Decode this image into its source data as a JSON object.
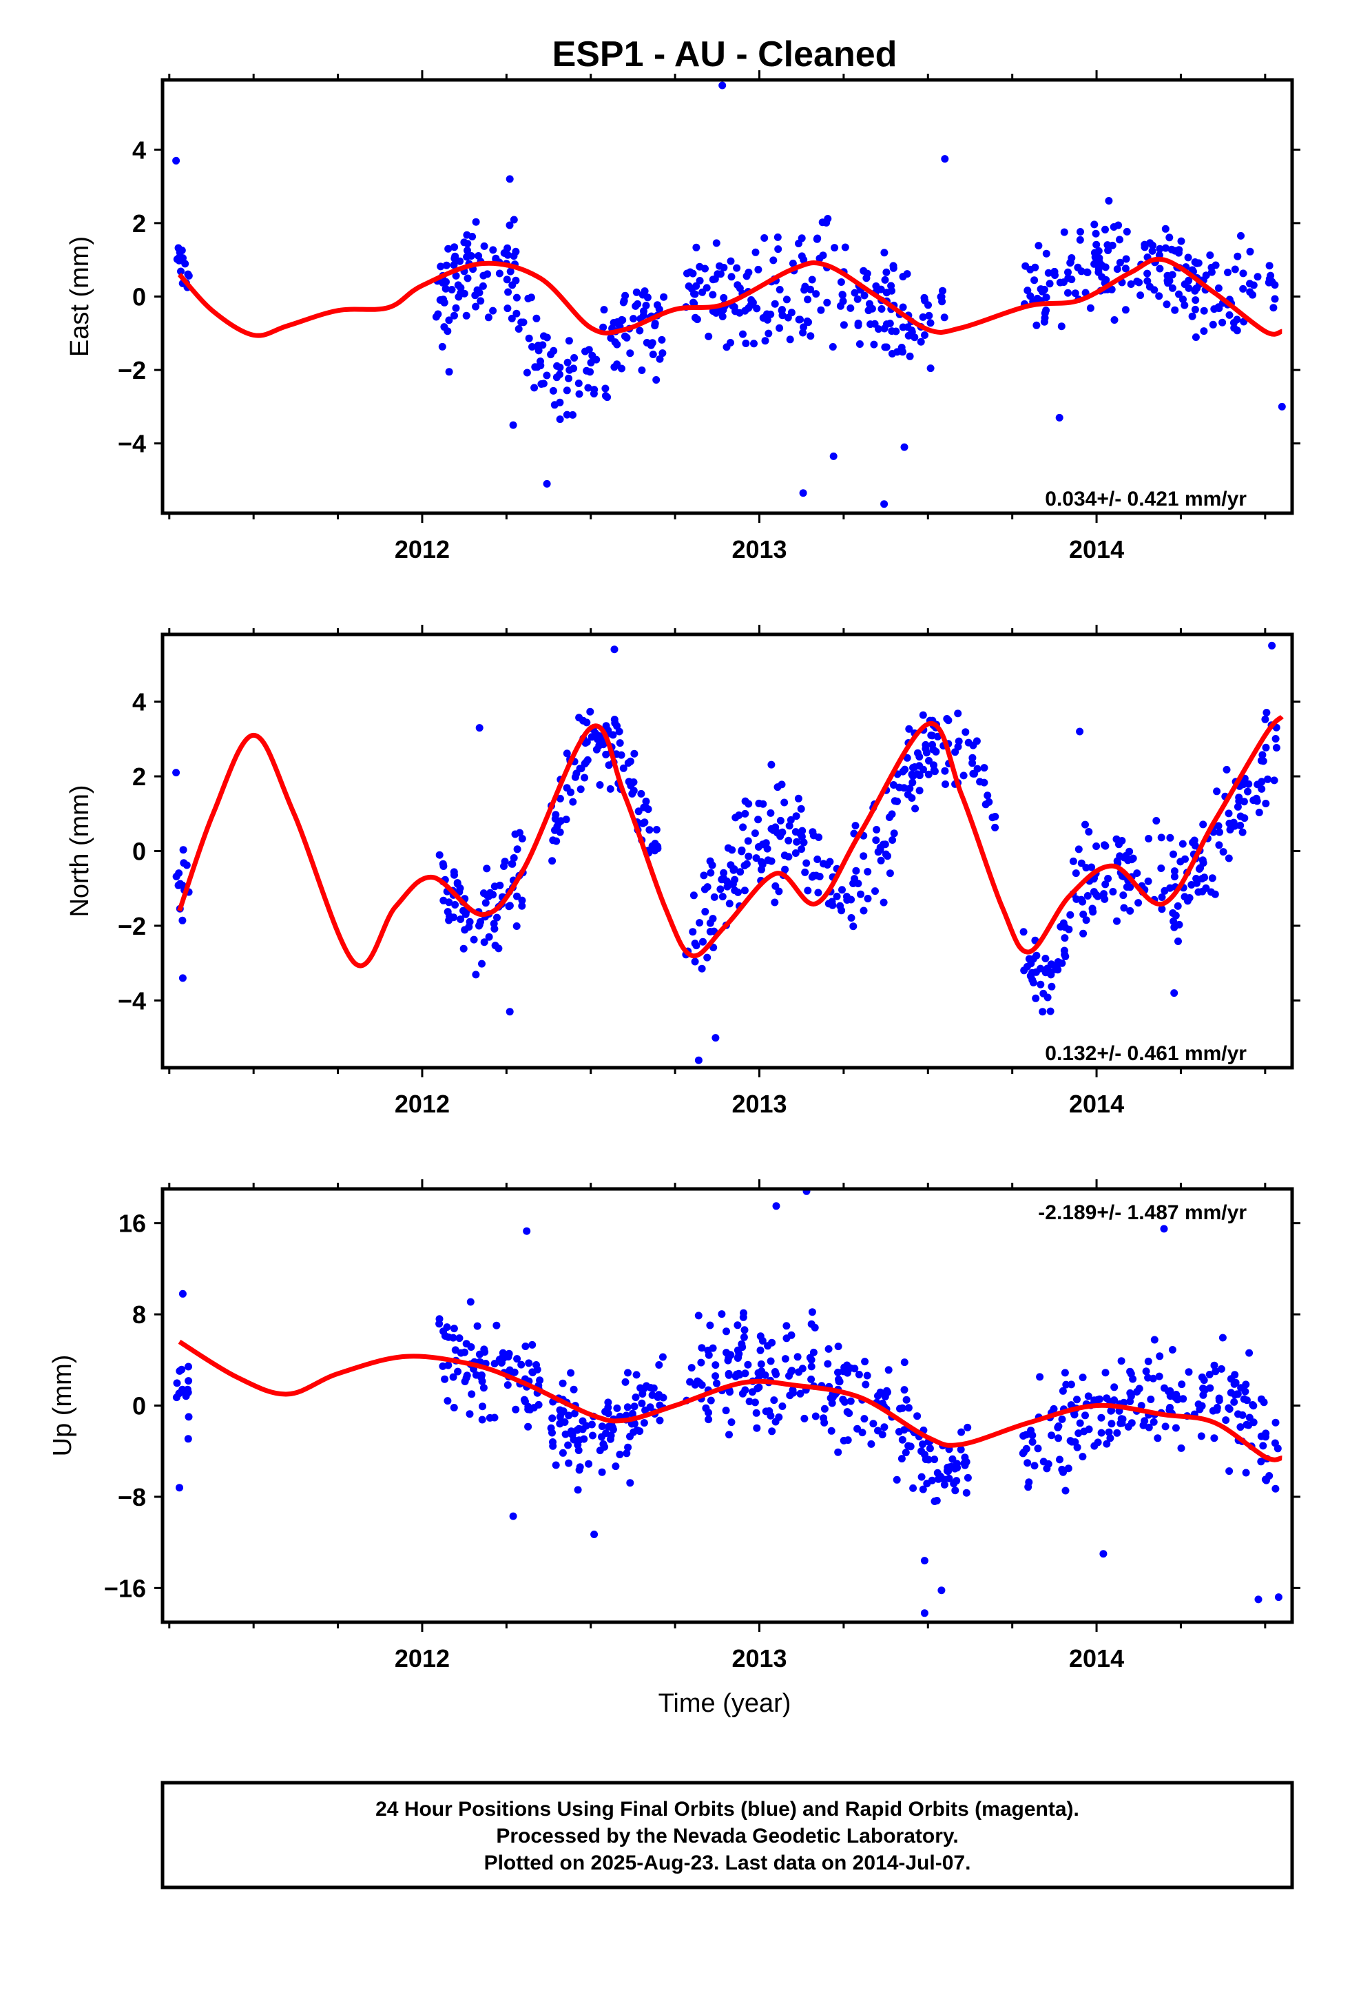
{
  "title": "ESP1  - AU - Cleaned",
  "xlabel": "Time (year)",
  "footer": {
    "line1": "24 Hour Positions Using Final Orbits (blue) and Rapid Orbits (magenta).",
    "line2": "Processed by the Nevada Geodetic Laboratory.",
    "line3": "Plotted on 2025-Aug-23. Last data on 2014-Jul-07."
  },
  "colors": {
    "points": "#0000ff",
    "fit": "#ff0000",
    "frame": "#000000"
  },
  "chart_data": [
    {
      "type": "scatter",
      "name": "east",
      "ylabel": "East (mm)",
      "rate_text": "0.034+/- 0.421 mm/yr",
      "xlim": [
        2011.23,
        2014.58
      ],
      "ylim": [
        -5.9,
        5.9
      ],
      "yticks": [
        -4,
        -2,
        0,
        2,
        4
      ],
      "xticks": [
        2012,
        2013,
        2014
      ],
      "fit": [
        [
          2011.28,
          0.6
        ],
        [
          2011.38,
          -0.4
        ],
        [
          2011.5,
          -1.05
        ],
        [
          2011.6,
          -0.8
        ],
        [
          2011.75,
          -0.38
        ],
        [
          2011.9,
          -0.3
        ],
        [
          2012.0,
          0.3
        ],
        [
          2012.18,
          0.9
        ],
        [
          2012.35,
          0.5
        ],
        [
          2012.5,
          -0.85
        ],
        [
          2012.6,
          -0.9
        ],
        [
          2012.75,
          -0.35
        ],
        [
          2012.9,
          -0.2
        ],
        [
          2013.1,
          0.75
        ],
        [
          2013.2,
          0.85
        ],
        [
          2013.35,
          0.0
        ],
        [
          2013.5,
          -0.9
        ],
        [
          2013.6,
          -0.85
        ],
        [
          2013.8,
          -0.25
        ],
        [
          2013.95,
          -0.1
        ],
        [
          2014.1,
          0.65
        ],
        [
          2014.2,
          1.0
        ],
        [
          2014.35,
          0.1
        ],
        [
          2014.5,
          -0.95
        ],
        [
          2014.55,
          -0.95
        ]
      ],
      "clusters": [
        {
          "from": 2011.27,
          "to": 2011.31,
          "center": [
            [
              2011.27,
              1.3
            ],
            [
              2011.31,
              0.9
            ]
          ],
          "spread": 1.3,
          "count": 14
        },
        {
          "from": 2012.04,
          "to": 2012.28,
          "center": [
            [
              2012.04,
              0.0
            ],
            [
              2012.18,
              1.1
            ],
            [
              2012.28,
              0.8
            ]
          ],
          "spread": 1.2,
          "count": 80
        },
        {
          "from": 2012.28,
          "to": 2012.72,
          "center": [
            [
              2012.28,
              -0.5
            ],
            [
              2012.42,
              -2.2
            ],
            [
              2012.52,
              -2.0
            ],
            [
              2012.62,
              -0.6
            ],
            [
              2012.72,
              -0.9
            ]
          ],
          "spread": 1.2,
          "count": 110
        },
        {
          "from": 2012.78,
          "to": 2013.55,
          "center": [
            [
              2012.8,
              0.2
            ],
            [
              2013.0,
              0.0
            ],
            [
              2013.2,
              0.5
            ],
            [
              2013.35,
              -0.3
            ],
            [
              2013.55,
              -0.5
            ]
          ],
          "spread": 1.4,
          "count": 200
        },
        {
          "from": 2013.78,
          "to": 2014.54,
          "center": [
            [
              2013.8,
              0.1
            ],
            [
              2014.0,
              0.8
            ],
            [
              2014.2,
              0.9
            ],
            [
              2014.35,
              0.0
            ],
            [
              2014.54,
              0.3
            ]
          ],
          "spread": 1.1,
          "count": 190
        }
      ],
      "outliers": [
        [
          2012.89,
          5.75
        ],
        [
          2013.55,
          3.75
        ],
        [
          2013.37,
          -5.65
        ],
        [
          2013.13,
          -5.35
        ],
        [
          2012.37,
          -5.1
        ],
        [
          2012.27,
          -3.5
        ],
        [
          2012.08,
          -2.05
        ],
        [
          2013.22,
          -4.35
        ],
        [
          2013.43,
          -4.1
        ],
        [
          2012.26,
          3.2
        ],
        [
          2011.27,
          3.7
        ],
        [
          2014.55,
          -3.0
        ],
        [
          2013.89,
          -3.3
        ]
      ]
    },
    {
      "type": "scatter",
      "name": "north",
      "ylabel": "North (mm)",
      "rate_text": "0.132+/- 0.461 mm/yr",
      "xlim": [
        2011.23,
        2014.58
      ],
      "ylim": [
        -5.8,
        5.8
      ],
      "yticks": [
        -4,
        -2,
        0,
        2,
        4
      ],
      "xticks": [
        2012,
        2013,
        2014
      ],
      "fit": [
        [
          2011.28,
          -1.6
        ],
        [
          2011.38,
          1.0
        ],
        [
          2011.5,
          3.1
        ],
        [
          2011.62,
          1.0
        ],
        [
          2011.8,
          -3.0
        ],
        [
          2011.92,
          -1.5
        ],
        [
          2012.03,
          -0.7
        ],
        [
          2012.18,
          -1.7
        ],
        [
          2012.3,
          -0.5
        ],
        [
          2012.5,
          3.3
        ],
        [
          2012.6,
          1.5
        ],
        [
          2012.72,
          -1.5
        ],
        [
          2012.8,
          -2.8
        ],
        [
          2012.9,
          -2.0
        ],
        [
          2013.05,
          -0.6
        ],
        [
          2013.17,
          -1.4
        ],
        [
          2013.3,
          0.5
        ],
        [
          2013.5,
          3.4
        ],
        [
          2013.6,
          1.5
        ],
        [
          2013.72,
          -1.5
        ],
        [
          2013.8,
          -2.7
        ],
        [
          2013.92,
          -1.2
        ],
        [
          2014.05,
          -0.4
        ],
        [
          2014.2,
          -1.4
        ],
        [
          2014.35,
          0.8
        ],
        [
          2014.5,
          3.1
        ],
        [
          2014.55,
          3.6
        ]
      ],
      "clusters": [
        {
          "from": 2011.27,
          "to": 2011.31,
          "center": [
            [
              2011.27,
              -0.5
            ],
            [
              2011.31,
              -1.5
            ]
          ],
          "spread": 1.1,
          "count": 12
        },
        {
          "from": 2012.05,
          "to": 2012.3,
          "center": [
            [
              2012.05,
              -1.0
            ],
            [
              2012.18,
              -1.8
            ],
            [
              2012.3,
              -0.6
            ]
          ],
          "spread": 1.1,
          "count": 80
        },
        {
          "from": 2012.38,
          "to": 2012.7,
          "center": [
            [
              2012.38,
              1.0
            ],
            [
              2012.5,
              3.0
            ],
            [
              2012.6,
              2.5
            ],
            [
              2012.7,
              -0.5
            ]
          ],
          "spread": 1.1,
          "count": 100
        },
        {
          "from": 2012.78,
          "to": 2013.4,
          "center": [
            [
              2012.8,
              -2.2
            ],
            [
              2012.95,
              0.0
            ],
            [
              2013.1,
              0.5
            ],
            [
              2013.25,
              -1.0
            ],
            [
              2013.4,
              0.5
            ]
          ],
          "spread": 1.4,
          "count": 170
        },
        {
          "from": 2013.4,
          "to": 2013.7,
          "center": [
            [
              2013.4,
              1.5
            ],
            [
              2013.52,
              3.0
            ],
            [
              2013.6,
              2.8
            ],
            [
              2013.7,
              1.2
            ]
          ],
          "spread": 1.0,
          "count": 80
        },
        {
          "from": 2013.78,
          "to": 2013.92,
          "center": [
            [
              2013.78,
              -2.8
            ],
            [
              2013.85,
              -3.5
            ],
            [
              2013.92,
              -2.5
            ]
          ],
          "spread": 0.8,
          "count": 40
        },
        {
          "from": 2013.92,
          "to": 2014.54,
          "center": [
            [
              2013.95,
              -1.0
            ],
            [
              2014.1,
              -0.5
            ],
            [
              2014.25,
              -1.0
            ],
            [
              2014.4,
              1.0
            ],
            [
              2014.54,
              3.0
            ]
          ],
          "spread": 1.2,
          "count": 170
        }
      ],
      "outliers": [
        [
          2012.57,
          5.4
        ],
        [
          2014.52,
          5.5
        ],
        [
          2012.82,
          -5.6
        ],
        [
          2012.87,
          -5.0
        ],
        [
          2013.84,
          -4.3
        ],
        [
          2012.26,
          -4.3
        ],
        [
          2014.23,
          -3.8
        ],
        [
          2011.29,
          -3.4
        ],
        [
          2012.17,
          3.3
        ],
        [
          2013.95,
          3.2
        ],
        [
          2011.27,
          2.1
        ]
      ]
    },
    {
      "type": "scatter",
      "name": "up",
      "ylabel": "Up (mm)",
      "rate_text": "-2.189+/- 1.487 mm/yr",
      "xlim": [
        2011.23,
        2014.58
      ],
      "ylim": [
        -19,
        19
      ],
      "yticks": [
        -16,
        -8,
        0,
        8,
        16
      ],
      "xticks": [
        2012,
        2013,
        2014
      ],
      "fit": [
        [
          2011.28,
          5.6
        ],
        [
          2011.45,
          2.5
        ],
        [
          2011.6,
          1.0
        ],
        [
          2011.75,
          2.8
        ],
        [
          2011.95,
          4.3
        ],
        [
          2012.15,
          3.6
        ],
        [
          2012.3,
          2.0
        ],
        [
          2012.5,
          -0.8
        ],
        [
          2012.6,
          -1.3
        ],
        [
          2012.75,
          0.0
        ],
        [
          2012.95,
          2.0
        ],
        [
          2013.1,
          1.8
        ],
        [
          2013.3,
          0.7
        ],
        [
          2013.5,
          -2.8
        ],
        [
          2013.6,
          -3.4
        ],
        [
          2013.8,
          -1.5
        ],
        [
          2014.0,
          0.0
        ],
        [
          2014.2,
          -0.8
        ],
        [
          2014.35,
          -1.5
        ],
        [
          2014.5,
          -4.5
        ],
        [
          2014.55,
          -4.6
        ]
      ],
      "clusters": [
        {
          "from": 2011.27,
          "to": 2011.31,
          "center": [
            [
              2011.27,
              3.0
            ],
            [
              2011.31,
              1.0
            ]
          ],
          "spread": 4.5,
          "count": 14
        },
        {
          "from": 2012.05,
          "to": 2012.35,
          "center": [
            [
              2012.05,
              4.0
            ],
            [
              2012.2,
              3.5
            ],
            [
              2012.35,
              1.0
            ]
          ],
          "spread": 4.0,
          "count": 90
        },
        {
          "from": 2012.38,
          "to": 2012.72,
          "center": [
            [
              2012.38,
              -1.0
            ],
            [
              2012.5,
              -3.5
            ],
            [
              2012.62,
              -1.0
            ],
            [
              2012.72,
              0.5
            ]
          ],
          "spread": 3.8,
          "count": 110
        },
        {
          "from": 2012.78,
          "to": 2013.45,
          "center": [
            [
              2012.8,
              2.0
            ],
            [
              2013.0,
              3.0
            ],
            [
              2013.2,
              2.0
            ],
            [
              2013.45,
              -2.0
            ]
          ],
          "spread": 4.8,
          "count": 190
        },
        {
          "from": 2013.45,
          "to": 2013.62,
          "center": [
            [
              2013.45,
              -4.0
            ],
            [
              2013.55,
              -6.0
            ],
            [
              2013.62,
              -4.0
            ]
          ],
          "spread": 3.0,
          "count": 50
        },
        {
          "from": 2013.78,
          "to": 2014.54,
          "center": [
            [
              2013.8,
              -2.5
            ],
            [
              2014.0,
              0.0
            ],
            [
              2014.2,
              0.5
            ],
            [
              2014.4,
              1.0
            ],
            [
              2014.54,
              -4.0
            ]
          ],
          "spread": 4.0,
          "count": 200
        }
      ],
      "outliers": [
        [
          2013.05,
          17.5
        ],
        [
          2013.14,
          18.8
        ],
        [
          2014.2,
          15.5
        ],
        [
          2012.31,
          15.3
        ],
        [
          2013.49,
          -18.2
        ],
        [
          2013.49,
          -13.6
        ],
        [
          2013.54,
          -16.2
        ],
        [
          2014.48,
          -17.0
        ],
        [
          2014.54,
          -16.8
        ],
        [
          2014.02,
          -13.0
        ],
        [
          2011.28,
          -7.2
        ],
        [
          2012.51,
          -11.3
        ],
        [
          2012.27,
          -9.7
        ],
        [
          2011.29,
          9.8
        ]
      ]
    }
  ]
}
